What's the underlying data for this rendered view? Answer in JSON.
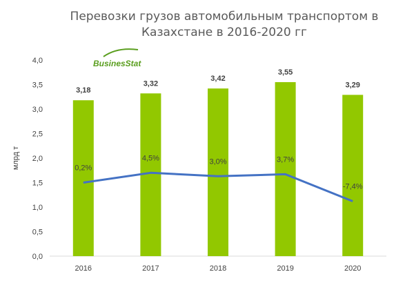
{
  "chart_data": {
    "type": "bar",
    "title_line1": "Перевозки грузов автомобильным транспортом в",
    "title_line2": "Казахстане в 2016-2020 гг",
    "ylabel": "млрд т",
    "categories": [
      "2016",
      "2017",
      "2018",
      "2019",
      "2020"
    ],
    "values": [
      3.18,
      3.32,
      3.42,
      3.55,
      3.29
    ],
    "value_labels": [
      "3,18",
      "3,32",
      "3,42",
      "3,55",
      "3,29"
    ],
    "ylim": [
      0,
      4.0
    ],
    "yticks": [
      "0,0",
      "0,5",
      "1,0",
      "1,5",
      "2,0",
      "2,5",
      "3,0",
      "3,5",
      "4,0"
    ],
    "growth": {
      "values": [
        1.5,
        1.7,
        1.63,
        1.67,
        1.12
      ],
      "labels": [
        "0,2%",
        "4,5%",
        "3,0%",
        "3,7%",
        "-7,4%"
      ]
    },
    "bar_color": "#92C800",
    "line_color": "#4472C4",
    "logo": {
      "text": "BusinesStat",
      "color": "#5a9e1e"
    }
  }
}
